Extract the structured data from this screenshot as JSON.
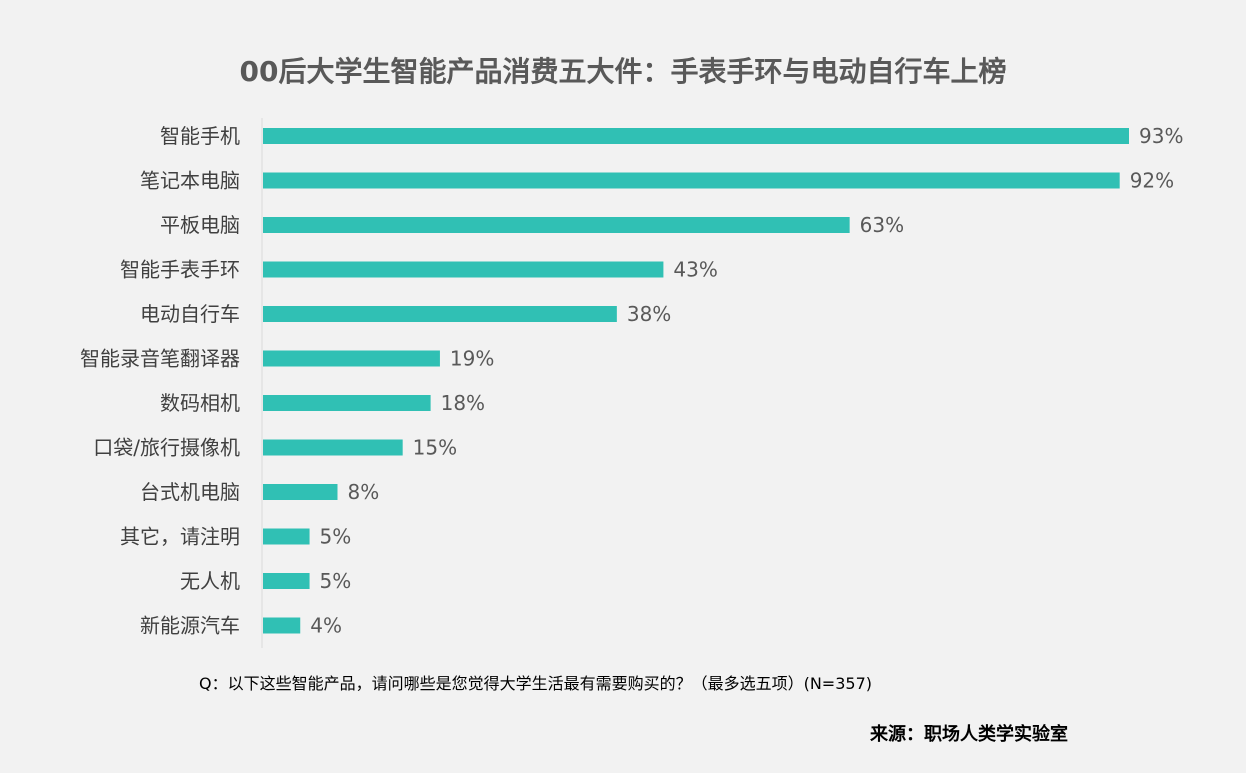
{
  "chart_data": {
    "type": "bar",
    "orientation": "horizontal",
    "title": "00后大学生智能产品消费五大件：手表手环与电动自行车上榜",
    "categories": [
      "智能手机",
      "笔记本电脑",
      "平板电脑",
      "智能手表手环",
      "电动自行车",
      "智能录音笔翻译器",
      "数码相机",
      "口袋/旅行摄像机",
      "台式机电脑",
      "其它，请注明",
      "无人机",
      "新能源汽车"
    ],
    "values": [
      93,
      92,
      63,
      43,
      38,
      19,
      18,
      15,
      8,
      5,
      5,
      4
    ],
    "value_suffix": "%",
    "bar_color": "#30c0b4",
    "xlim": [
      0,
      100
    ],
    "grid": false
  },
  "question": "Q：以下这些智能产品，请问哪些是您觉得大学生活最有需要购买的？（最多选五项）(N=357)",
  "source": "来源：职场人类学实验室"
}
